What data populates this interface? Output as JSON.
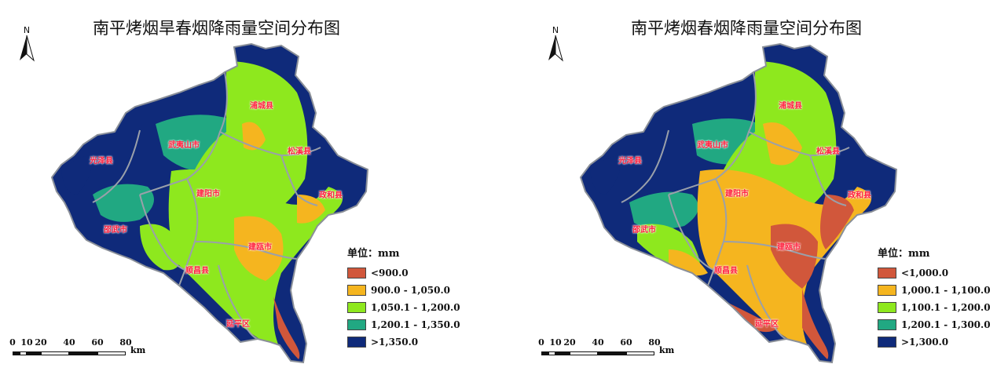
{
  "maps": [
    {
      "title": "南平烤烟旱春烟降雨量空间分布图",
      "north_label": "N",
      "counties": [
        "光泽县",
        "武夷山市",
        "浦城县",
        "松溪县",
        "政和县",
        "建阳市",
        "邵武市",
        "建瓯市",
        "顺昌县",
        "延平区"
      ],
      "legend": {
        "title": "单位：mm",
        "classes": [
          {
            "label": "<900.0",
            "color": "#d1573b"
          },
          {
            "label": "900.0 - 1,050.0",
            "color": "#f5b51f"
          },
          {
            "label": "1,050.1 - 1,200.0",
            "color": "#8ee81e"
          },
          {
            "label": "1,200.1 - 1,350.0",
            "color": "#21a882"
          },
          {
            "label": ">1,350.0",
            "color": "#0f2a7a"
          }
        ]
      },
      "scale": {
        "ticks": [
          "0",
          "10",
          "20",
          "40",
          "60",
          "80"
        ],
        "unit": "km"
      }
    },
    {
      "title": "南平烤烟春烟降雨量空间分布图",
      "north_label": "N",
      "counties": [
        "光泽县",
        "武夷山市",
        "浦城县",
        "松溪县",
        "政和县",
        "建阳市",
        "邵武市",
        "建瓯市",
        "顺昌县",
        "延平区"
      ],
      "legend": {
        "title": "单位：mm",
        "classes": [
          {
            "label": "<1,000.0",
            "color": "#d1573b"
          },
          {
            "label": "1,000.1 - 1,100.0",
            "color": "#f5b51f"
          },
          {
            "label": "1,100.1 - 1,200.0",
            "color": "#8ee81e"
          },
          {
            "label": "1,200.1 - 1,300.0",
            "color": "#21a882"
          },
          {
            "label": ">1,300.0",
            "color": "#0f2a7a"
          }
        ]
      },
      "scale": {
        "ticks": [
          "0",
          "10",
          "20",
          "40",
          "60",
          "80"
        ],
        "unit": "km"
      }
    }
  ]
}
